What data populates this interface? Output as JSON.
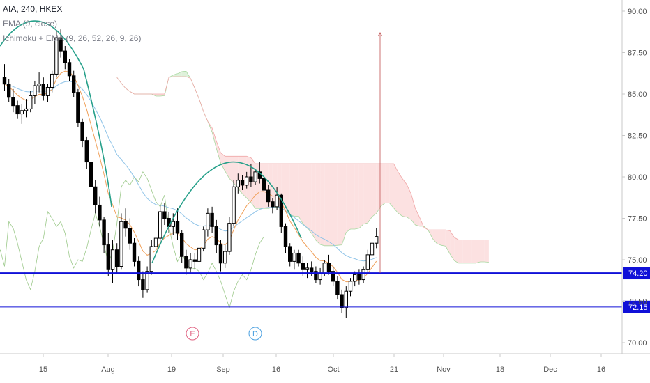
{
  "legend": {
    "symbol": "AIA, 240, HKEX",
    "ema": "EMA (9, close)",
    "ichimoku": "Ichimoku + EMA (9, 26, 52, 26, 9, 26)"
  },
  "colors": {
    "candle": "#000000",
    "ema_fast": "#f0a05a",
    "ema_slow": "#90c4e8",
    "arc": "#26a08a",
    "lagging": "#9cc98a",
    "cloud_bull": "#d8efd4",
    "cloud_bear": "#fbdcdc",
    "hline": "#1010d8",
    "arrow": "#c05050",
    "event_e": "#e06080",
    "event_d": "#4aa0e0"
  },
  "chart_data": {
    "type": "candlestick",
    "xlabels": [
      "15",
      "Aug",
      "19",
      "Sep",
      "16",
      "Oct",
      "21",
      "Nov",
      "18",
      "Dec",
      "16"
    ],
    "y_ticks": [
      "70.00",
      "72.50",
      "75.00",
      "77.50",
      "80.00",
      "82.50",
      "85.00",
      "87.50",
      "90.00"
    ],
    "ylim": [
      69.0,
      90.5
    ],
    "candles": [
      [
        86.0,
        86.8,
        85.2,
        85.6
      ],
      [
        85.6,
        85.9,
        84.5,
        84.8
      ],
      [
        84.8,
        85.3,
        83.9,
        84.3
      ],
      [
        84.3,
        84.6,
        83.5,
        83.8
      ],
      [
        83.8,
        84.4,
        83.2,
        84.0
      ],
      [
        84.0,
        84.7,
        83.6,
        84.1
      ],
      [
        84.1,
        85.2,
        83.9,
        84.9
      ],
      [
        84.9,
        85.8,
        84.4,
        85.5
      ],
      [
        85.5,
        86.3,
        85.1,
        85.6
      ],
      [
        85.6,
        86.0,
        84.6,
        84.9
      ],
      [
        84.9,
        85.6,
        84.5,
        85.4
      ],
      [
        85.4,
        86.4,
        85.1,
        86.2
      ],
      [
        86.2,
        88.8,
        86.0,
        88.4
      ],
      [
        88.4,
        88.9,
        87.2,
        87.6
      ],
      [
        87.6,
        87.9,
        86.5,
        86.9
      ],
      [
        86.9,
        87.1,
        85.8,
        86.1
      ],
      [
        86.1,
        86.4,
        84.8,
        85.1
      ],
      [
        85.1,
        85.3,
        83.0,
        83.3
      ],
      [
        83.3,
        83.5,
        81.8,
        82.2
      ],
      [
        82.2,
        82.4,
        80.5,
        80.9
      ],
      [
        80.9,
        81.2,
        79.0,
        79.4
      ],
      [
        79.4,
        79.8,
        77.8,
        78.3
      ],
      [
        78.3,
        78.8,
        77.0,
        77.4
      ],
      [
        77.4,
        77.6,
        75.4,
        75.9
      ],
      [
        75.9,
        76.6,
        74.0,
        74.4
      ],
      [
        74.4,
        76.2,
        73.6,
        75.6
      ],
      [
        75.6,
        76.0,
        74.2,
        74.6
      ],
      [
        74.6,
        77.8,
        74.4,
        77.3
      ],
      [
        77.3,
        78.1,
        76.4,
        76.9
      ],
      [
        76.9,
        77.5,
        75.6,
        76.0
      ],
      [
        76.0,
        76.3,
        74.6,
        74.9
      ],
      [
        74.9,
        75.2,
        73.4,
        73.8
      ],
      [
        73.8,
        74.3,
        72.7,
        73.2
      ],
      [
        73.2,
        74.6,
        73.0,
        74.3
      ],
      [
        74.3,
        76.2,
        74.1,
        75.8
      ],
      [
        75.8,
        76.8,
        75.4,
        76.3
      ],
      [
        76.3,
        78.3,
        76.1,
        77.9
      ],
      [
        77.9,
        78.4,
        77.1,
        77.5
      ],
      [
        77.5,
        77.9,
        76.6,
        77.0
      ],
      [
        77.0,
        77.8,
        76.5,
        77.3
      ],
      [
        77.3,
        78.1,
        76.2,
        76.6
      ],
      [
        76.6,
        76.8,
        74.8,
        75.2
      ],
      [
        75.2,
        75.6,
        74.1,
        74.5
      ],
      [
        74.5,
        75.4,
        74.2,
        75.0
      ],
      [
        75.0,
        75.4,
        74.4,
        74.9
      ],
      [
        74.9,
        76.0,
        74.6,
        75.7
      ],
      [
        75.7,
        77.0,
        75.5,
        76.8
      ],
      [
        76.8,
        78.1,
        76.4,
        77.8
      ],
      [
        77.8,
        78.2,
        76.6,
        77.0
      ],
      [
        77.0,
        77.4,
        75.4,
        75.9
      ],
      [
        75.9,
        76.2,
        74.3,
        74.8
      ],
      [
        74.8,
        75.9,
        74.5,
        75.5
      ],
      [
        75.5,
        77.6,
        75.3,
        77.2
      ],
      [
        77.2,
        79.8,
        77.0,
        79.4
      ],
      [
        79.4,
        80.2,
        79.0,
        79.8
      ],
      [
        79.8,
        80.1,
        79.2,
        79.5
      ],
      [
        79.5,
        80.3,
        79.3,
        80.0
      ],
      [
        80.0,
        80.8,
        79.4,
        79.7
      ],
      [
        79.7,
        80.5,
        79.5,
        80.3
      ],
      [
        80.3,
        80.9,
        79.6,
        79.9
      ],
      [
        79.9,
        80.2,
        78.9,
        79.2
      ],
      [
        79.2,
        79.5,
        78.2,
        78.5
      ],
      [
        78.5,
        78.7,
        77.8,
        78.2
      ],
      [
        78.2,
        79.4,
        78.0,
        78.9
      ],
      [
        78.9,
        79.0,
        76.6,
        77.0
      ],
      [
        77.0,
        77.2,
        75.4,
        75.8
      ],
      [
        75.8,
        76.0,
        74.6,
        74.9
      ],
      [
        74.9,
        75.6,
        74.4,
        75.4
      ],
      [
        75.4,
        75.6,
        74.6,
        74.8
      ],
      [
        74.8,
        75.2,
        74.0,
        74.4
      ],
      [
        74.4,
        74.8,
        73.9,
        74.5
      ],
      [
        74.5,
        74.9,
        74.0,
        74.3
      ],
      [
        74.3,
        74.6,
        73.6,
        73.8
      ],
      [
        73.8,
        74.5,
        73.5,
        74.2
      ],
      [
        74.2,
        75.0,
        74.0,
        74.8
      ],
      [
        74.8,
        75.3,
        74.1,
        74.3
      ],
      [
        74.3,
        74.6,
        73.4,
        73.7
      ],
      [
        73.7,
        74.0,
        72.6,
        72.9
      ],
      [
        72.9,
        73.2,
        71.8,
        72.1
      ],
      [
        72.1,
        73.4,
        71.5,
        73.1
      ],
      [
        73.1,
        73.9,
        72.8,
        73.7
      ],
      [
        73.7,
        74.3,
        73.4,
        74.1
      ],
      [
        74.1,
        74.4,
        73.5,
        73.8
      ],
      [
        73.8,
        74.6,
        73.6,
        74.4
      ],
      [
        74.4,
        75.6,
        74.2,
        75.3
      ],
      [
        75.3,
        76.3,
        75.1,
        76.0
      ],
      [
        76.0,
        76.9,
        75.7,
        76.4
      ]
    ],
    "horizontal_levels": [
      {
        "value": 74.2,
        "label": "74.20"
      },
      {
        "value": 72.15,
        "label": "72.15"
      }
    ],
    "events": [
      {
        "label": "E",
        "x_index": 45
      },
      {
        "label": "D",
        "x_index": 60
      }
    ],
    "target_arrow": {
      "from": 74.2,
      "to": 88.7
    }
  }
}
